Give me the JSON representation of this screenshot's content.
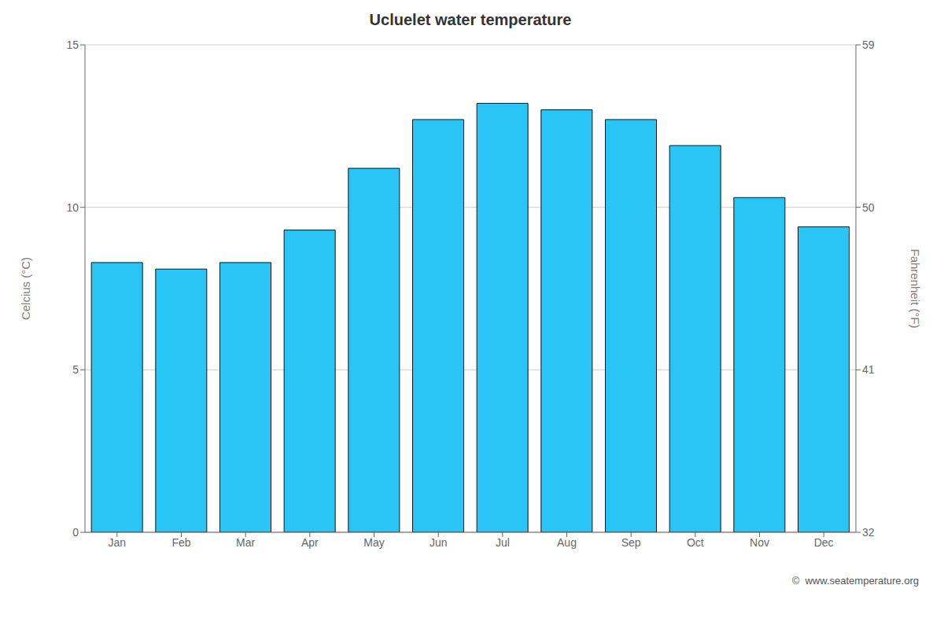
{
  "chart_data": {
    "type": "bar",
    "title": "Ucluelet water temperature",
    "categories": [
      "Jan",
      "Feb",
      "Mar",
      "Apr",
      "May",
      "Jun",
      "Jul",
      "Aug",
      "Sep",
      "Oct",
      "Nov",
      "Dec"
    ],
    "values": [
      8.3,
      8.1,
      8.3,
      9.3,
      11.2,
      12.7,
      13.2,
      13.0,
      12.7,
      11.9,
      10.3,
      9.4
    ],
    "color": "#29C5F6",
    "ylabel": "Celcius (°C)",
    "y2label": "Fahrenheit (°F)",
    "ylim": [
      0,
      15
    ],
    "yticks": [
      0,
      5,
      10,
      15
    ],
    "y2lim": [
      32,
      59
    ],
    "y2ticks": [
      32,
      41,
      50,
      59
    ],
    "grid": true,
    "annotations": [
      "©  www.seatemperature.org"
    ]
  }
}
